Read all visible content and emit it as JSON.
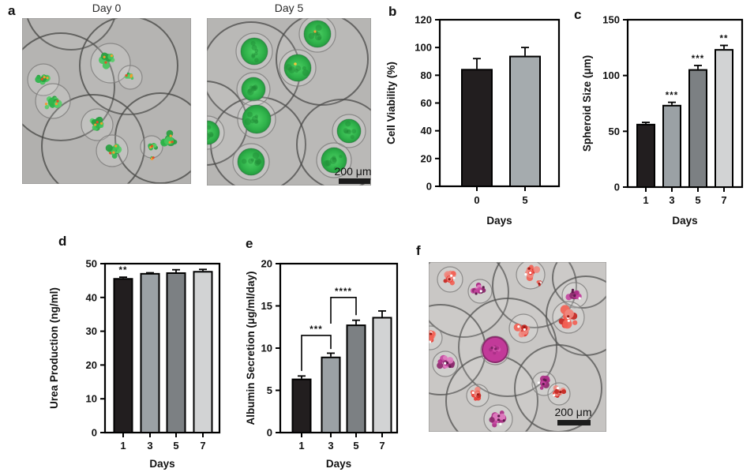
{
  "panel_labels": {
    "a": "a",
    "b": "b",
    "c": "c",
    "d": "d",
    "e": "e",
    "f": "f"
  },
  "micrographs": {
    "day0": {
      "title": "Day 0"
    },
    "day5": {
      "title": "Day 5",
      "scale_bar": "200 μm"
    },
    "f": {
      "scale_bar": "200 μm"
    }
  },
  "colors": {
    "bar_black": "#221e1f",
    "bar_gray": "#9ba1a5",
    "bar_darkgray": "#7c8083",
    "bar_lightgray": "#d2d3d4",
    "axis": "#000000"
  },
  "chart_data": [
    {
      "id": "b",
      "type": "bar",
      "categories": [
        "0",
        "5"
      ],
      "values": [
        84,
        93.5
      ],
      "errors": [
        8,
        6.5
      ],
      "bar_colors": [
        "#221e1f",
        "#a5abae"
      ],
      "sig": [
        "",
        ""
      ],
      "brackets": [],
      "title": "",
      "xlabel": "Days",
      "ylabel": "Cell Viability (%)",
      "ylim": [
        0,
        120
      ],
      "yticks": [
        0,
        20,
        40,
        60,
        80,
        100,
        120
      ]
    },
    {
      "id": "c",
      "type": "bar",
      "categories": [
        "1",
        "3",
        "5",
        "7"
      ],
      "values": [
        56,
        73,
        105,
        123
      ],
      "errors": [
        2,
        3,
        4,
        4
      ],
      "bar_colors": [
        "#221e1f",
        "#9ba1a5",
        "#7c8083",
        "#d2d3d4"
      ],
      "sig": [
        "",
        "***",
        "***",
        "**"
      ],
      "brackets": [],
      "title": "",
      "xlabel": "Days",
      "ylabel": "Spheroid Size (μm)",
      "ylim": [
        0,
        150
      ],
      "yticks": [
        0,
        50,
        100,
        150
      ]
    },
    {
      "id": "d",
      "type": "bar",
      "categories": [
        "1",
        "3",
        "5",
        "7"
      ],
      "values": [
        45.5,
        47,
        47.2,
        47.6
      ],
      "errors": [
        0.5,
        0.3,
        1.0,
        0.7
      ],
      "bar_colors": [
        "#221e1f",
        "#9ba1a5",
        "#7c8083",
        "#d2d3d4"
      ],
      "sig": [
        "**",
        "",
        "",
        ""
      ],
      "brackets": [],
      "title": "",
      "xlabel": "Days",
      "ylabel": "Urea Production (ng/ml)",
      "ylim": [
        0,
        50
      ],
      "yticks": [
        0,
        10,
        20,
        30,
        40,
        50
      ]
    },
    {
      "id": "e",
      "type": "bar",
      "categories": [
        "1",
        "3",
        "5",
        "7"
      ],
      "values": [
        6.3,
        8.9,
        12.7,
        13.6
      ],
      "errors": [
        0.4,
        0.5,
        0.6,
        0.8
      ],
      "bar_colors": [
        "#221e1f",
        "#9ba1a5",
        "#7c8083",
        "#d2d3d4"
      ],
      "sig": [
        "",
        "",
        "",
        ""
      ],
      "brackets": [
        {
          "from": 0,
          "to": 1,
          "label": "***",
          "top": 11.5,
          "leg_from": 7.3,
          "leg_to": 9.9
        },
        {
          "from": 1,
          "to": 2,
          "label": "****",
          "top": 16.0,
          "leg_from": 12.9,
          "leg_to": 13.9
        }
      ],
      "title": "",
      "xlabel": "Days",
      "ylabel": "Albumin Secretion (μg/ml/day)",
      "ylim": [
        0,
        20
      ],
      "yticks": [
        0,
        5,
        10,
        15,
        20
      ]
    }
  ]
}
